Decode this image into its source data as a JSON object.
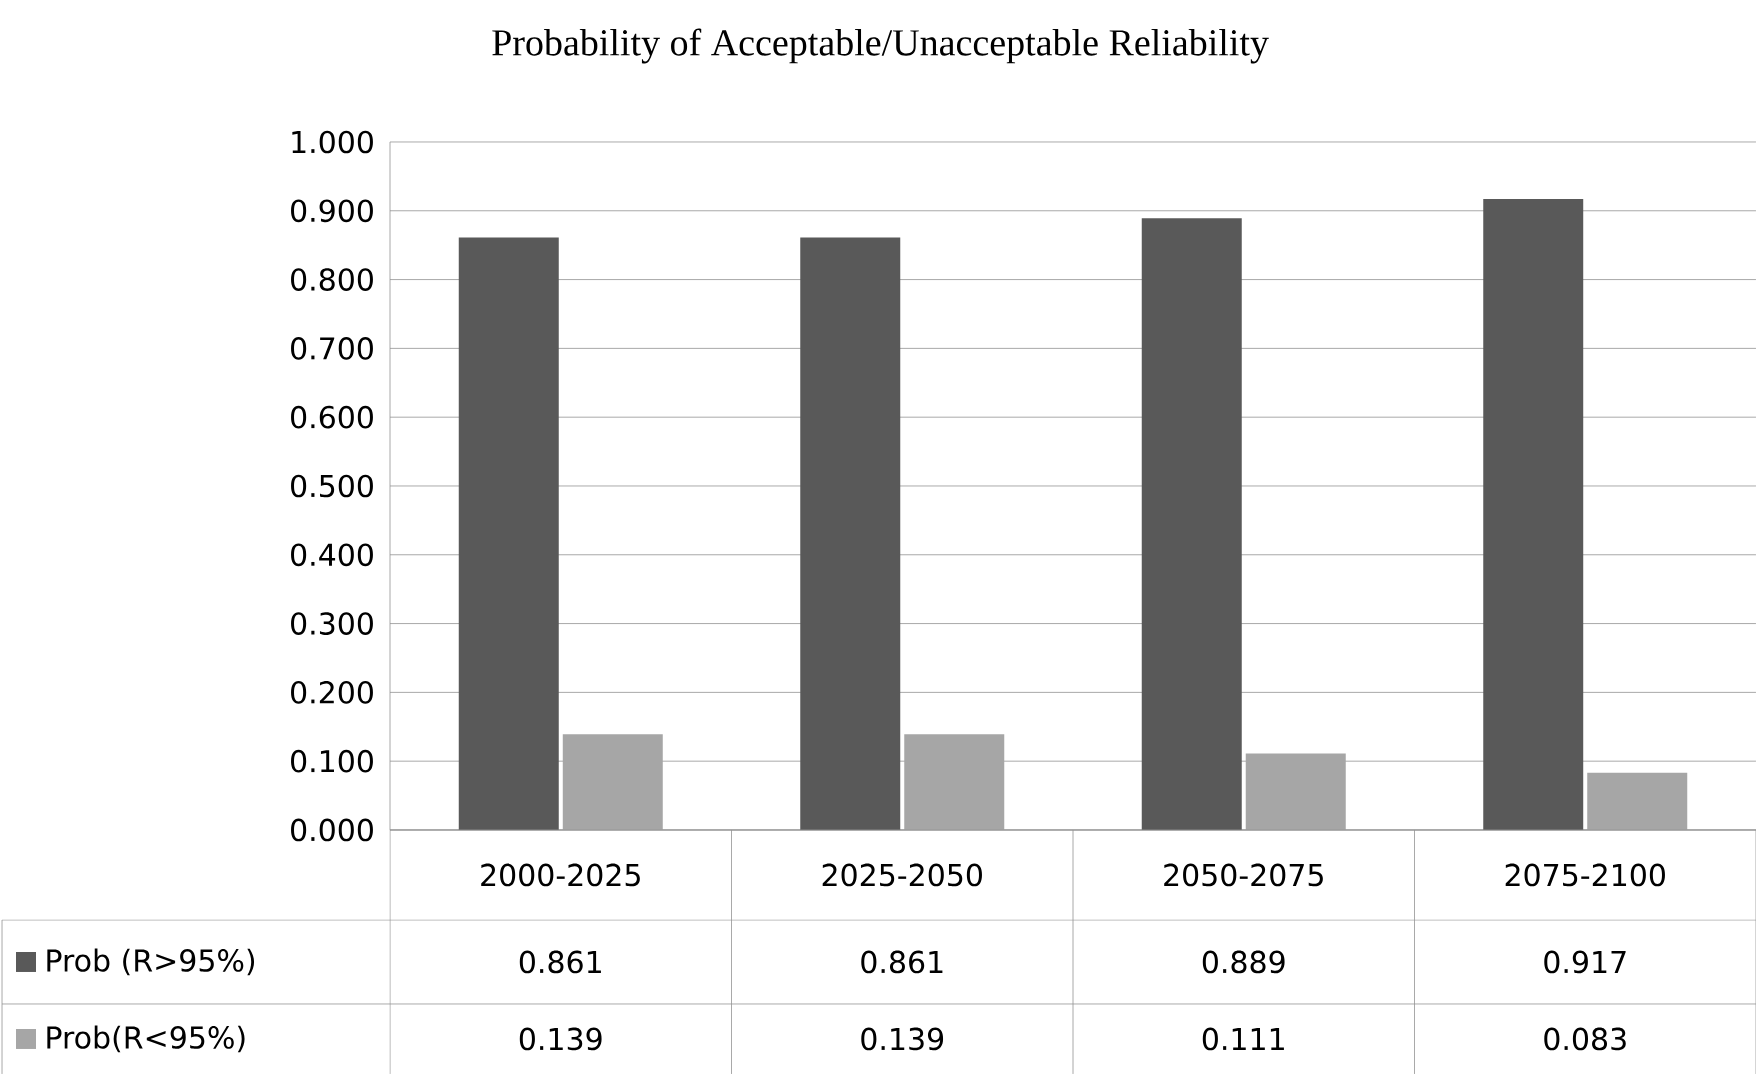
{
  "chart_data": {
    "type": "bar",
    "title": "Probability  of Acceptable/Unacceptable  Reliability",
    "categories": [
      "2000-2025",
      "2025-2050",
      "2050-2075",
      "2075-2100"
    ],
    "series": [
      {
        "name": "Prob (R>95%)",
        "color": "#595959",
        "values": [
          0.861,
          0.861,
          0.889,
          0.917
        ],
        "value_labels": [
          "0.861",
          "0.861",
          "0.889",
          "0.917"
        ]
      },
      {
        "name": "Prob(R<95%)",
        "color": "#a6a6a6",
        "values": [
          0.139,
          0.139,
          0.111,
          0.083
        ],
        "value_labels": [
          "0.139",
          "0.139",
          "0.111",
          "0.083"
        ]
      }
    ],
    "ylim": [
      0,
      1
    ],
    "yticks": [
      {
        "value": 0,
        "label": "0.000"
      },
      {
        "value": 0.1,
        "label": "0.100"
      },
      {
        "value": 0.2,
        "label": "0.200"
      },
      {
        "value": 0.3,
        "label": "0.300"
      },
      {
        "value": 0.4,
        "label": "0.400"
      },
      {
        "value": 0.5,
        "label": "0.500"
      },
      {
        "value": 0.6,
        "label": "0.600"
      },
      {
        "value": 0.7,
        "label": "0.700"
      },
      {
        "value": 0.8,
        "label": "0.800"
      },
      {
        "value": 0.9,
        "label": "0.900"
      },
      {
        "value": 1,
        "label": "1.000"
      }
    ],
    "grid": "y",
    "legend": "bottom"
  }
}
